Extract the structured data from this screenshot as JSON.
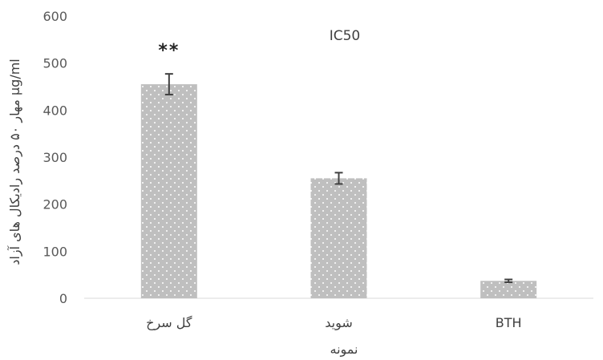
{
  "chart_data": {
    "type": "bar",
    "title": "IC50",
    "xlabel": "نمونه",
    "ylabel": "مهار ۵۰ درصد رادیکال های آزاد  μg/ml",
    "categories": [
      "گل سرخ",
      "شوید",
      "BTH"
    ],
    "values": [
      455,
      255,
      37
    ],
    "error": [
      22,
      12,
      3
    ],
    "annotations": [
      {
        "category": "گل سرخ",
        "text": "**"
      }
    ],
    "ylim": [
      0,
      600
    ],
    "yticks": [
      0,
      100,
      200,
      300,
      400,
      500,
      600
    ],
    "grid": false,
    "legend": "none",
    "colors": {
      "bar": "#bfbfbf",
      "dot": "#ffffff",
      "error": "#404040",
      "axis": "#d9d9d9"
    }
  }
}
